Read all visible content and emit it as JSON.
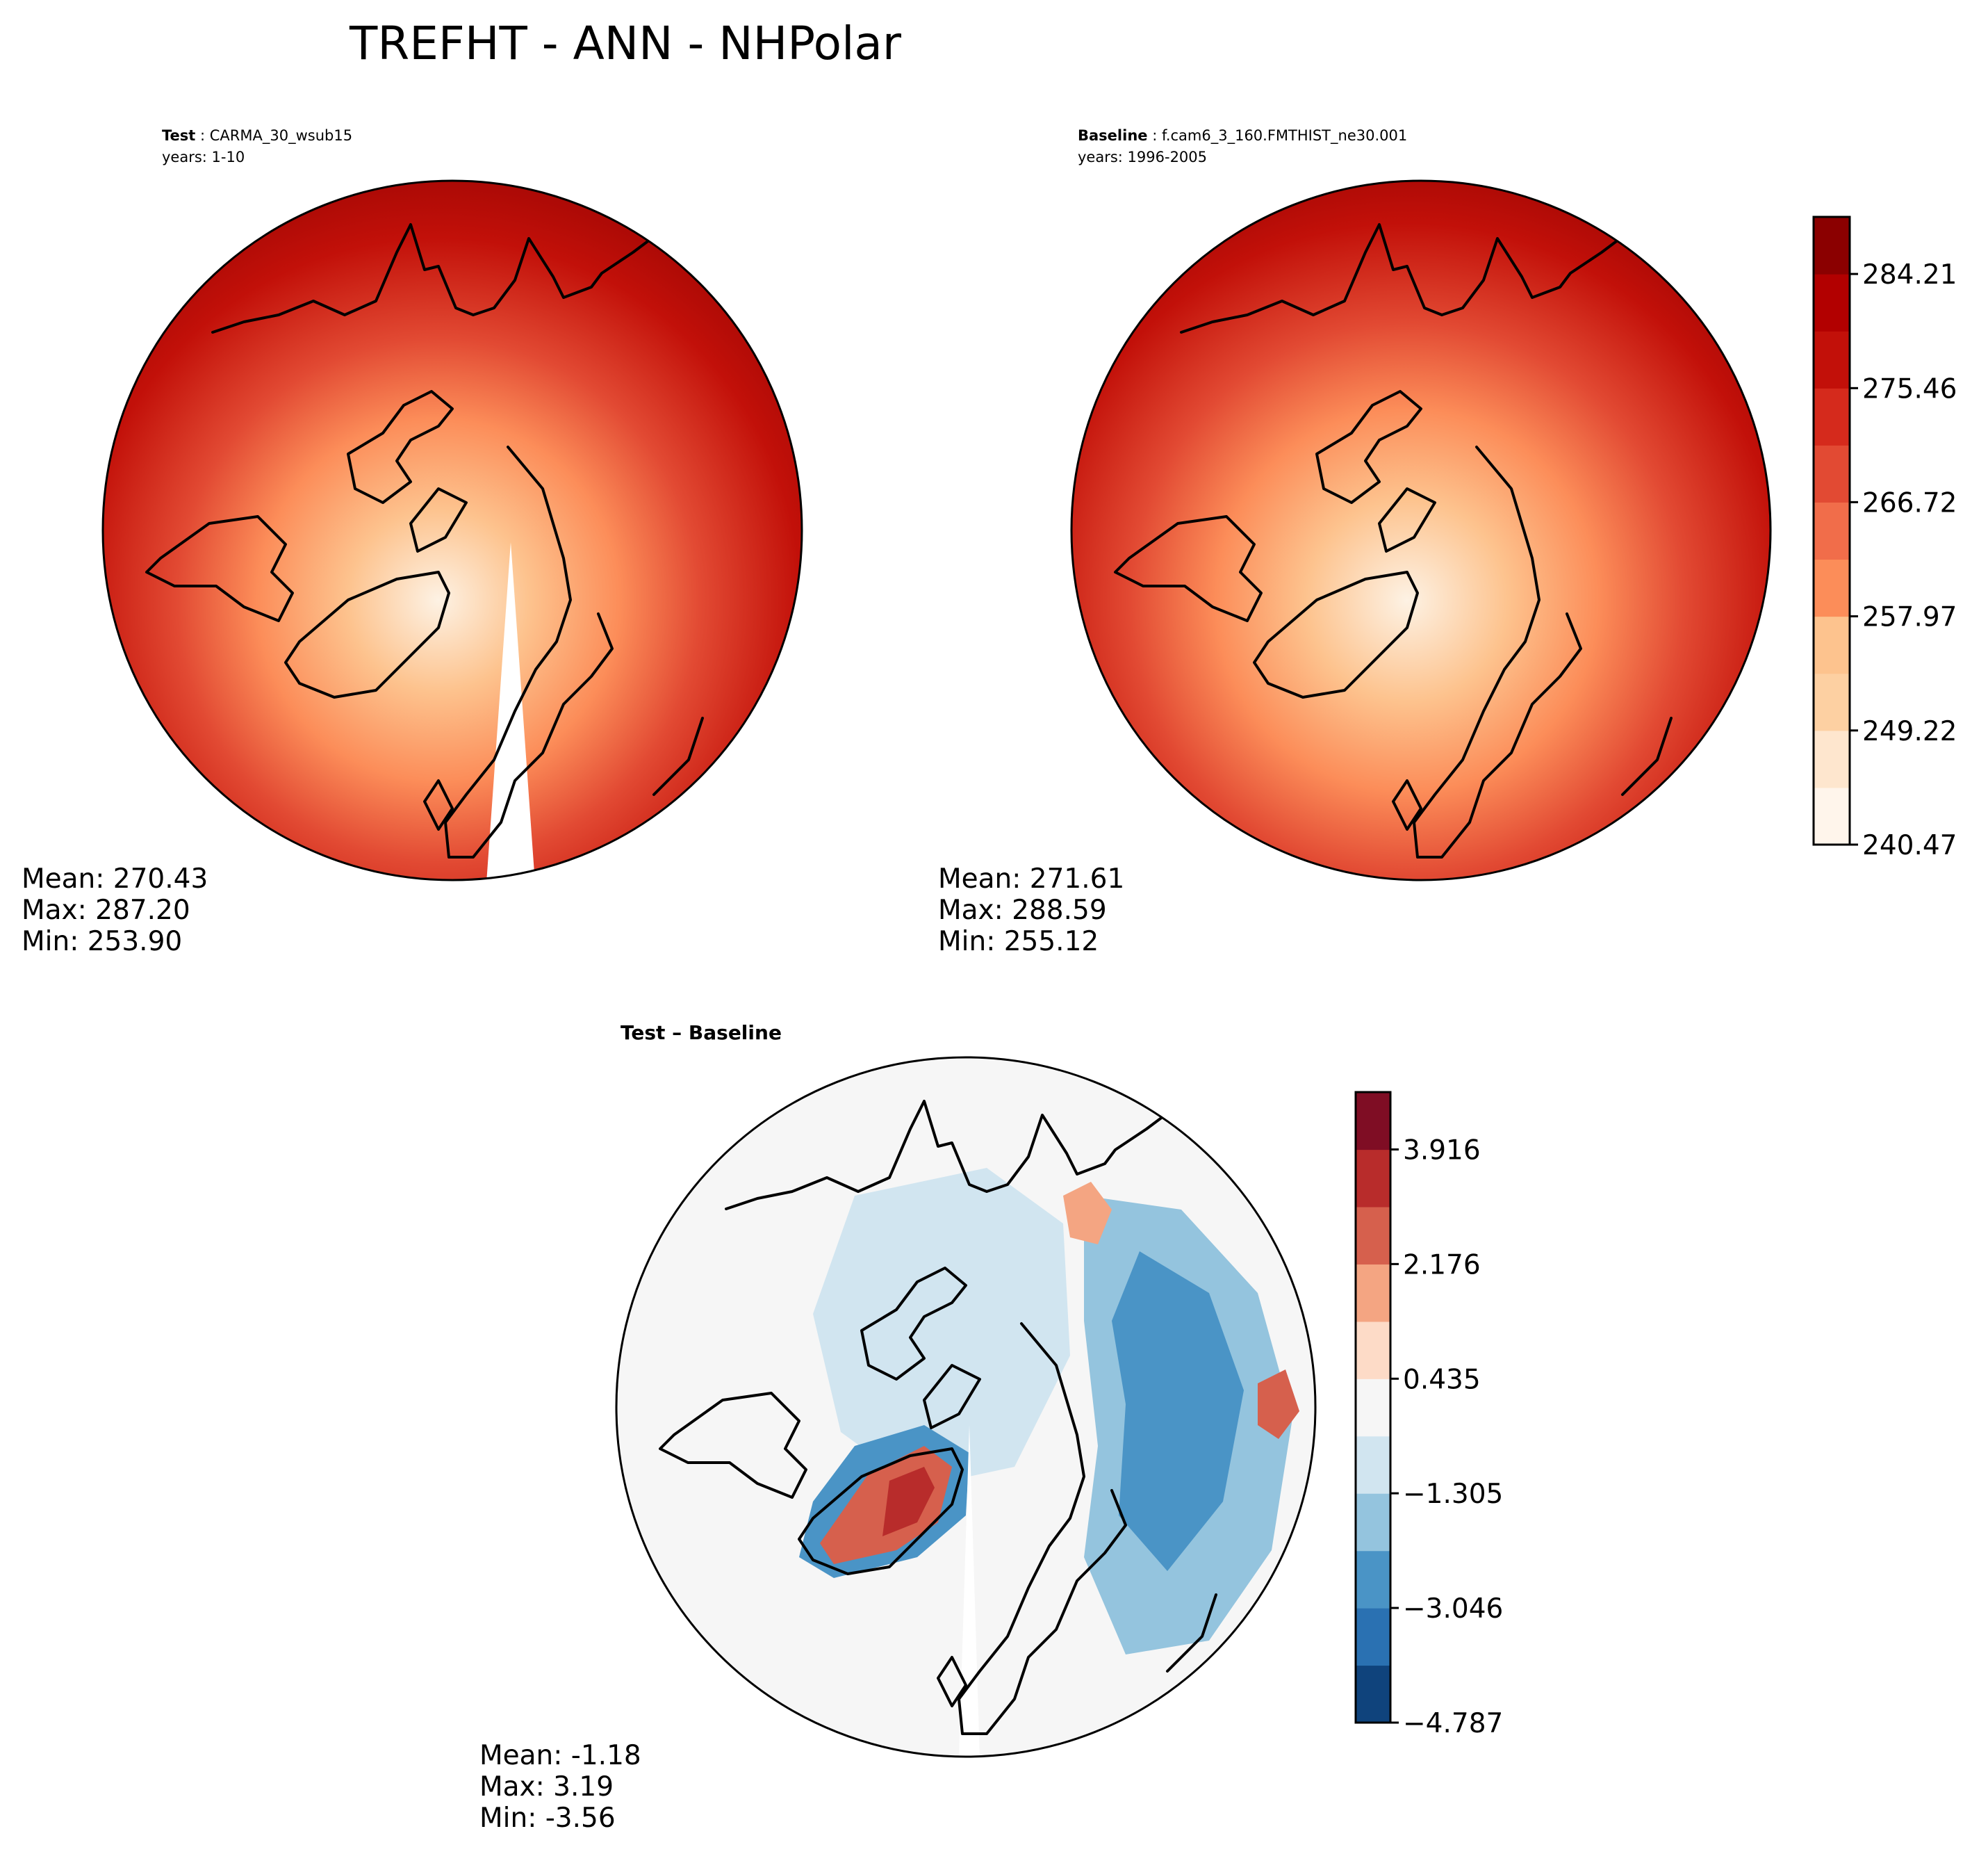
{
  "figure": {
    "title": "TREFHT - ANN - NHPolar"
  },
  "chart_data": [
    {
      "type": "heatmap",
      "projection": "north-polar-stereographic",
      "subtitle": {
        "label": "Test",
        "value": "CARMA_30_wsub15",
        "years": "years: 1-10"
      },
      "stats": {
        "mean": "Mean: 270.43",
        "max": "Max: 287.20",
        "min": "Min: 253.90"
      },
      "colormap": "Reds",
      "shares_colorbar_with": "Baseline"
    },
    {
      "type": "heatmap",
      "projection": "north-polar-stereographic",
      "subtitle": {
        "label": "Baseline",
        "value": "f.cam6_3_160.FMTHIST_ne30.001",
        "years": "years: 1996-2005"
      },
      "stats": {
        "mean": "Mean: 271.61",
        "max": "Max: 288.59",
        "min": "Min: 255.12"
      },
      "colormap": "Reds",
      "colorbar": {
        "levels": [
          240.47,
          244.845,
          249.22,
          253.595,
          257.97,
          262.345,
          266.72,
          271.09,
          275.46,
          279.835,
          284.21,
          288.585
        ],
        "tick_labels": [
          "240.47",
          "249.22",
          "257.97",
          "266.72",
          "275.46",
          "284.21"
        ],
        "colors": [
          "#fff5eb",
          "#fee6ce",
          "#fdd0a2",
          "#fdc38e",
          "#fc8d59",
          "#f16d4a",
          "#e24a33",
          "#d52a1c",
          "#c21009",
          "#b20000",
          "#8b0000"
        ]
      }
    },
    {
      "type": "heatmap",
      "projection": "north-polar-stereographic",
      "subtitle": {
        "label": "Test – Baseline"
      },
      "stats": {
        "mean": "Mean: -1.18",
        "max": "Max:  3.19",
        "min": "Min: -3.56"
      },
      "colormap": "RdBu_r",
      "colorbar": {
        "levels": [
          -4.787,
          -3.916,
          -3.046,
          -2.176,
          -1.305,
          -0.435,
          0.435,
          1.305,
          2.176,
          3.046,
          3.916,
          4.787
        ],
        "tick_labels": [
          "−4.787",
          "−3.046",
          "−1.305",
          "0.435",
          "2.176",
          "3.916"
        ],
        "colors": [
          "#0f437c",
          "#2a71b2",
          "#4a94c6",
          "#94c4de",
          "#d1e5f0",
          "#f6f6f6",
          "#fddbc7",
          "#f4a582",
          "#d6604d",
          "#b82c2b",
          "#7f0d24"
        ]
      }
    }
  ]
}
